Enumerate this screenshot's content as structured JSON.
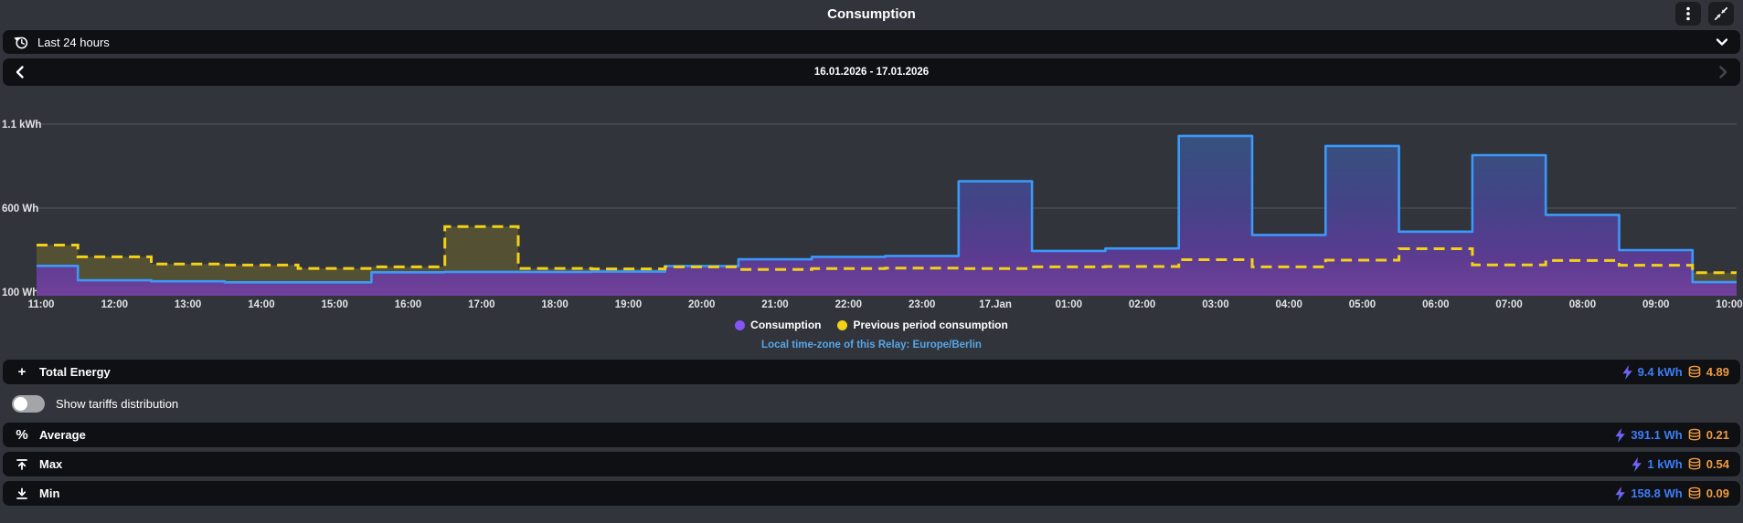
{
  "header": {
    "title": "Consumption"
  },
  "range_select": {
    "label": "Last 24 hours"
  },
  "date_nav": {
    "range": "16.01.2026 - 17.01.2026"
  },
  "chart_data": {
    "type": "area",
    "step_mode": "hourly-bars-centered-on-ticks",
    "x": [
      "11:00",
      "12:00",
      "13:00",
      "14:00",
      "15:00",
      "16:00",
      "17:00",
      "18:00",
      "19:00",
      "20:00",
      "21:00",
      "22:00",
      "23:00",
      "17.Jan",
      "01:00",
      "02:00",
      "03:00",
      "04:00",
      "05:00",
      "06:00",
      "07:00",
      "08:00",
      "09:00",
      "10:00"
    ],
    "series": [
      {
        "name": "Consumption",
        "color": "#8655f6",
        "unit": "Wh",
        "values": [
          256,
          170,
          164,
          158,
          158,
          218,
          220,
          220,
          222,
          255,
          295,
          310,
          315,
          760,
          345,
          360,
          1030,
          440,
          970,
          460,
          915,
          560,
          350,
          159
        ]
      },
      {
        "name": "Previous period consumption",
        "color": "#f2d118",
        "unit": "Wh",
        "values": [
          380,
          310,
          267,
          261,
          241,
          250,
          490,
          241,
          238,
          250,
          235,
          240,
          243,
          240,
          250,
          252,
          293,
          250,
          290,
          358,
          262,
          288,
          260,
          215
        ]
      }
    ],
    "y_ticks": [
      {
        "label": "1.1 kWh",
        "value": 1100
      },
      {
        "label": "600 Wh",
        "value": 600
      },
      {
        "label": "100 Wh",
        "value": 100
      }
    ],
    "y_range_wh": [
      100,
      1150
    ],
    "grid": true,
    "legend_position": "bottom"
  },
  "footnote": {
    "timezone": "Local time-zone of this Relay: Europe/Berlin"
  },
  "stats": {
    "total": {
      "icon": "+",
      "label": "Total Energy",
      "energy": "9.4 kWh",
      "cost": "4.89"
    },
    "tariffs_toggle": {
      "label": "Show tariffs distribution",
      "state": "off"
    },
    "average": {
      "icon": "%",
      "label": "Average",
      "energy": "391.1 Wh",
      "cost": "0.21"
    },
    "max": {
      "label": "Max",
      "energy": "1 kWh",
      "cost": "0.54"
    },
    "min": {
      "label": "Min",
      "energy": "158.8 Wh",
      "cost": "0.09"
    }
  },
  "colors": {
    "energy_value": "#3e7ef7",
    "cost_value": "#ef9b40",
    "consumption_line": "#3b99fa",
    "previous_line": "#f2d118",
    "timezone_text": "#58a6e8",
    "card_bg": "#0e1013",
    "page_bg": "#31343a"
  }
}
